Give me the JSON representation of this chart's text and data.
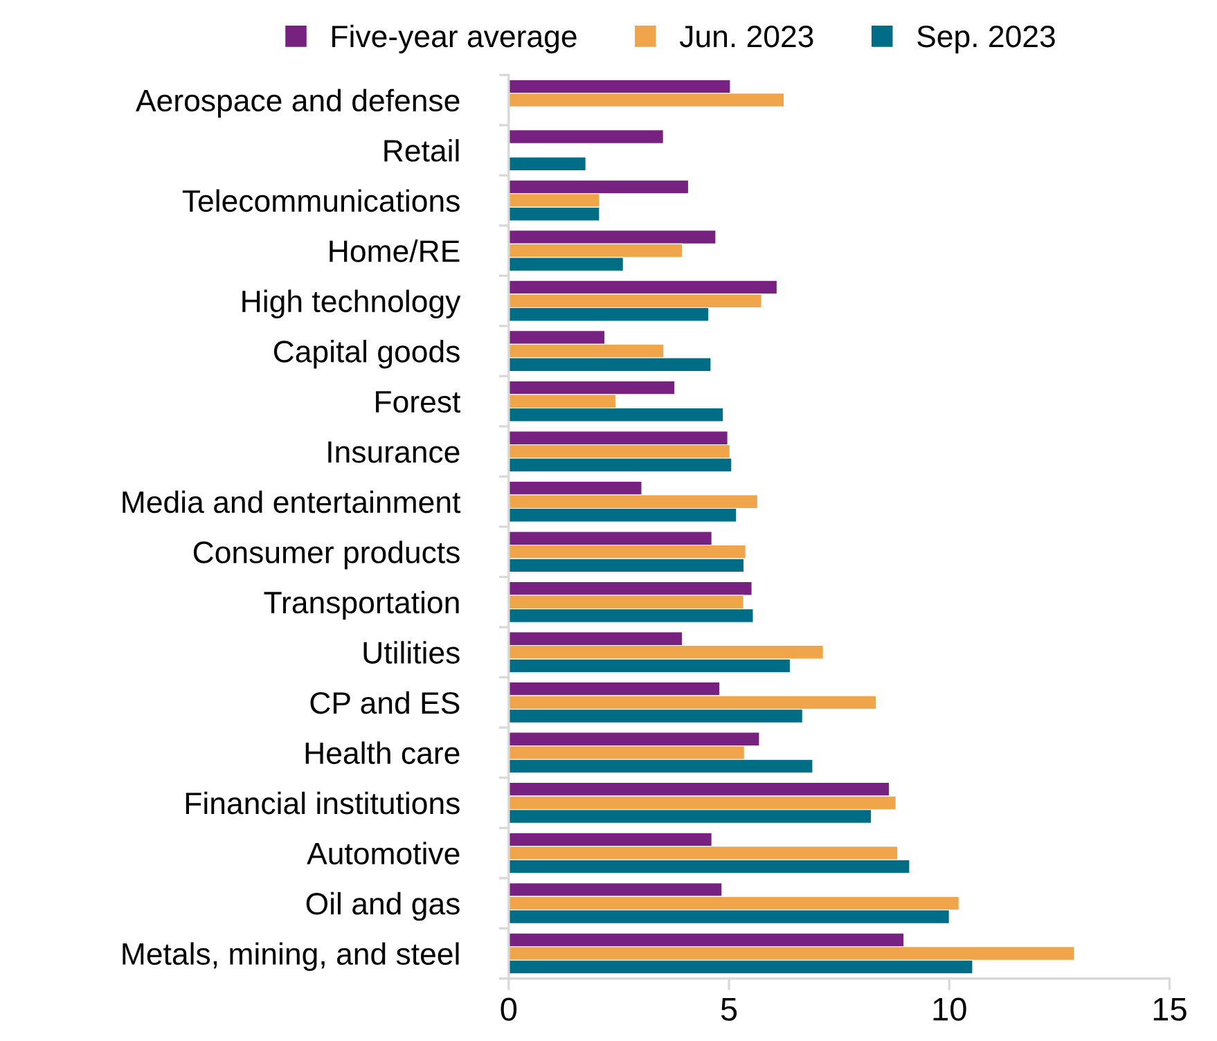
{
  "chart_data": {
    "type": "bar",
    "orientation": "horizontal",
    "categories": [
      "Aerospace and defense",
      "Retail",
      "Telecommunications",
      "Home/RE",
      "High technology",
      "Capital goods",
      "Forest",
      "Insurance",
      "Media and entertainment",
      "Consumer products",
      "Transportation",
      "Utilities",
      "CP and ES",
      "Health care",
      "Financial institutions",
      "Automotive",
      "Oil and gas",
      "Metals, mining, and steel"
    ],
    "series": [
      {
        "name": "Five-year average",
        "color": "#772181",
        "values": [
          5.03,
          3.51,
          4.08,
          4.7,
          6.09,
          2.18,
          3.77,
          4.97,
          3.02,
          4.61,
          5.52,
          3.94,
          4.79,
          5.69,
          8.64,
          4.61,
          4.84,
          8.97
        ]
      },
      {
        "name": "Jun. 2023",
        "color": "#f0a54a",
        "values": [
          6.25,
          null,
          2.06,
          3.94,
          5.74,
          3.52,
          2.43,
          5.02,
          5.65,
          5.38,
          5.33,
          7.14,
          8.34,
          5.35,
          8.79,
          8.83,
          10.22,
          12.84
        ]
      },
      {
        "name": "Sep. 2023",
        "color": "#006d87",
        "values": [
          null,
          1.75,
          2.06,
          2.6,
          4.54,
          4.59,
          4.87,
          5.06,
          5.17,
          5.34,
          5.55,
          6.39,
          6.67,
          6.9,
          8.23,
          9.1,
          10.0,
          10.53
        ]
      }
    ],
    "xlim": [
      0,
      15
    ],
    "xticks": [
      0,
      5,
      10,
      15
    ],
    "grid": false,
    "legend": "top"
  }
}
